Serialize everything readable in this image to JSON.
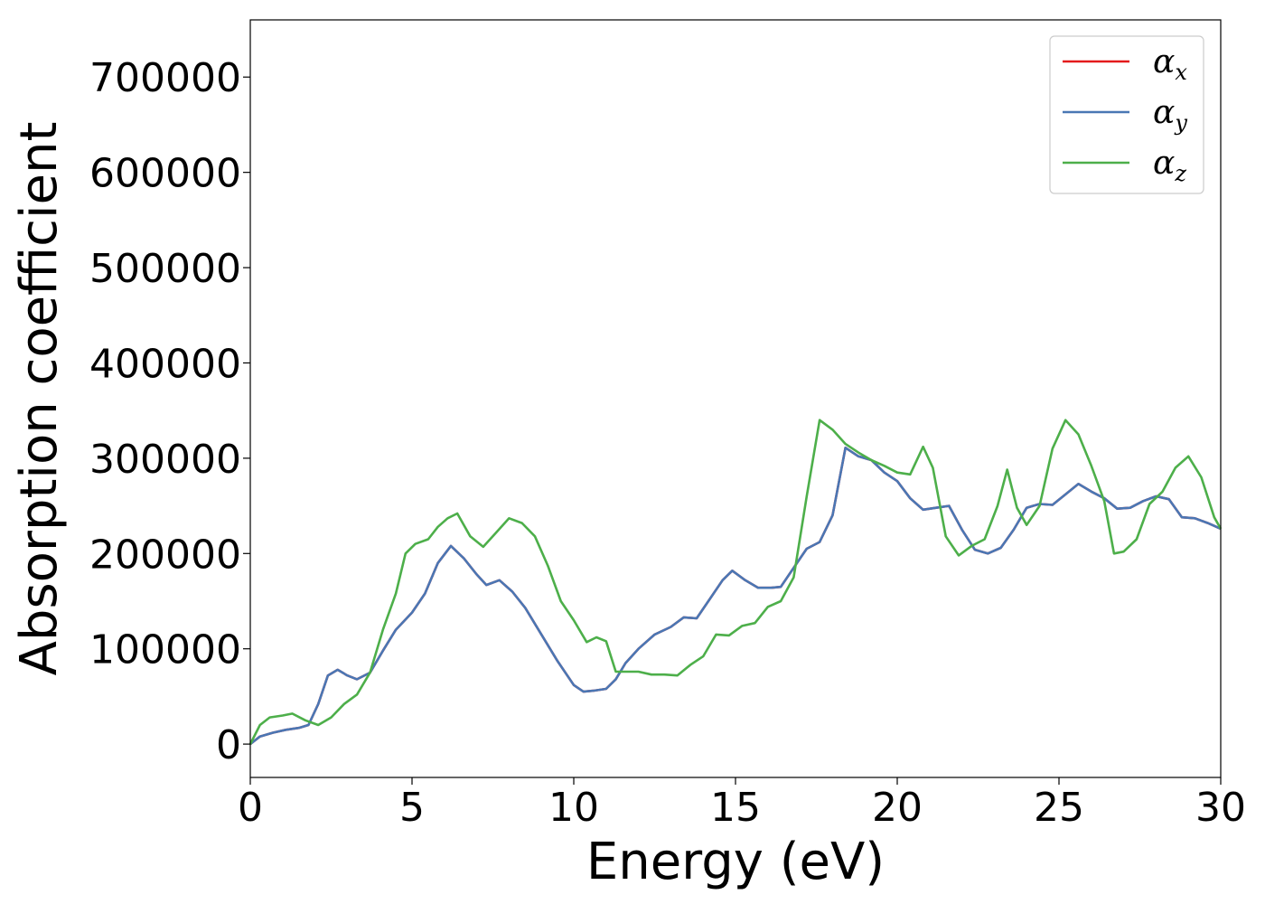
{
  "chart_data": {
    "type": "line",
    "title": "",
    "xlabel": "Energy (eV)",
    "ylabel": "Absorption coefficient",
    "xlim": [
      0,
      30
    ],
    "ylim": [
      -35000,
      760000
    ],
    "xticks": [
      "0",
      "5",
      "10",
      "15",
      "20",
      "25",
      "30"
    ],
    "xtick_values": [
      0,
      5,
      10,
      15,
      20,
      25,
      30
    ],
    "yticks": [
      "0",
      "100000",
      "200000",
      "300000",
      "400000",
      "500000",
      "600000",
      "700000"
    ],
    "ytick_values": [
      0,
      100000,
      200000,
      300000,
      400000,
      500000,
      600000,
      700000
    ],
    "grid": false,
    "legend_position": "top-right",
    "series": [
      {
        "name": "x",
        "legend_symbol": "α",
        "legend_subscript": "x",
        "color": "#e41a1c",
        "x": [
          0,
          0.3,
          0.7,
          1.1,
          1.5,
          1.8,
          2.1,
          2.4,
          2.7,
          3.0,
          3.3,
          3.7,
          4.1,
          4.5,
          5.0,
          5.4,
          5.8,
          6.2,
          6.6,
          7.0,
          7.3,
          7.7,
          8.1,
          8.5,
          9.0,
          9.5,
          10.0,
          10.3,
          10.6,
          11.0,
          11.3,
          11.6,
          12.0,
          12.5,
          13.0,
          13.4,
          13.8,
          14.2,
          14.6,
          14.9,
          15.3,
          15.7,
          16.1,
          16.4,
          16.8,
          17.2,
          17.6,
          18.0,
          18.4,
          18.8,
          19.2,
          19.6,
          20.0,
          20.4,
          20.8,
          21.2,
          21.6,
          22.0,
          22.4,
          22.8,
          23.2,
          23.6,
          24.0,
          24.4,
          24.8,
          25.2,
          25.6,
          26.0,
          26.4,
          26.8,
          27.2,
          27.6,
          28.0,
          28.4,
          28.8,
          29.2,
          29.6,
          30.0
        ],
        "y": [
          0,
          8000,
          12000,
          15000,
          17000,
          20000,
          42000,
          72000,
          78000,
          72000,
          68000,
          75000,
          98000,
          120000,
          138000,
          158000,
          190000,
          208000,
          195000,
          178000,
          167000,
          172000,
          160000,
          143000,
          115000,
          87000,
          62000,
          55000,
          56000,
          58000,
          68000,
          85000,
          100000,
          115000,
          123000,
          133000,
          132000,
          152000,
          172000,
          182000,
          172000,
          164000,
          164000,
          165000,
          185000,
          205000,
          212000,
          240000,
          311000,
          302000,
          298000,
          285000,
          276000,
          258000,
          246000,
          248000,
          250000,
          225000,
          204000,
          200000,
          206000,
          225000,
          248000,
          252000,
          251000,
          262000,
          273000,
          265000,
          258000,
          247000,
          248000,
          255000,
          260000,
          257000,
          238000,
          237000,
          232000,
          226000
        ]
      },
      {
        "name": "y",
        "legend_symbol": "α",
        "legend_subscript": "y",
        "color": "#4a77b4",
        "x": [
          0,
          0.3,
          0.7,
          1.1,
          1.5,
          1.8,
          2.1,
          2.4,
          2.7,
          3.0,
          3.3,
          3.7,
          4.1,
          4.5,
          5.0,
          5.4,
          5.8,
          6.2,
          6.6,
          7.0,
          7.3,
          7.7,
          8.1,
          8.5,
          9.0,
          9.5,
          10.0,
          10.3,
          10.6,
          11.0,
          11.3,
          11.6,
          12.0,
          12.5,
          13.0,
          13.4,
          13.8,
          14.2,
          14.6,
          14.9,
          15.3,
          15.7,
          16.1,
          16.4,
          16.8,
          17.2,
          17.6,
          18.0,
          18.4,
          18.8,
          19.2,
          19.6,
          20.0,
          20.4,
          20.8,
          21.2,
          21.6,
          22.0,
          22.4,
          22.8,
          23.2,
          23.6,
          24.0,
          24.4,
          24.8,
          25.2,
          25.6,
          26.0,
          26.4,
          26.8,
          27.2,
          27.6,
          28.0,
          28.4,
          28.8,
          29.2,
          29.6,
          30.0
        ],
        "y": [
          0,
          8000,
          12000,
          15000,
          17000,
          20000,
          42000,
          72000,
          78000,
          72000,
          68000,
          75000,
          98000,
          120000,
          138000,
          158000,
          190000,
          208000,
          195000,
          178000,
          167000,
          172000,
          160000,
          143000,
          115000,
          87000,
          62000,
          55000,
          56000,
          58000,
          68000,
          85000,
          100000,
          115000,
          123000,
          133000,
          132000,
          152000,
          172000,
          182000,
          172000,
          164000,
          164000,
          165000,
          185000,
          205000,
          212000,
          240000,
          311000,
          302000,
          298000,
          285000,
          276000,
          258000,
          246000,
          248000,
          250000,
          225000,
          204000,
          200000,
          206000,
          225000,
          248000,
          252000,
          251000,
          262000,
          273000,
          265000,
          258000,
          247000,
          248000,
          255000,
          260000,
          257000,
          238000,
          237000,
          232000,
          226000
        ]
      },
      {
        "name": "z",
        "legend_symbol": "α",
        "legend_subscript": "z",
        "color": "#4daf4a",
        "x": [
          0,
          0.3,
          0.6,
          1.0,
          1.3,
          1.7,
          2.1,
          2.5,
          2.9,
          3.3,
          3.7,
          4.1,
          4.5,
          4.8,
          5.1,
          5.5,
          5.8,
          6.1,
          6.4,
          6.8,
          7.2,
          7.6,
          8.0,
          8.4,
          8.8,
          9.2,
          9.6,
          10.0,
          10.4,
          10.7,
          11.0,
          11.3,
          11.6,
          12.0,
          12.4,
          12.8,
          13.2,
          13.6,
          14.0,
          14.4,
          14.8,
          15.2,
          15.6,
          16.0,
          16.4,
          16.8,
          17.2,
          17.6,
          18.0,
          18.4,
          18.8,
          19.2,
          19.6,
          20.0,
          20.4,
          20.8,
          21.1,
          21.5,
          21.9,
          22.3,
          22.7,
          23.1,
          23.4,
          23.7,
          24.0,
          24.4,
          24.8,
          25.2,
          25.6,
          26.0,
          26.4,
          26.7,
          27.0,
          27.4,
          27.8,
          28.2,
          28.6,
          29.0,
          29.4,
          29.8,
          30.0
        ],
        "y": [
          0,
          20000,
          28000,
          30000,
          32000,
          25000,
          20000,
          28000,
          42000,
          52000,
          75000,
          120000,
          158000,
          200000,
          210000,
          215000,
          228000,
          237000,
          242000,
          218000,
          207000,
          222000,
          237000,
          232000,
          218000,
          187000,
          150000,
          130000,
          107000,
          112000,
          108000,
          76000,
          76000,
          76000,
          73000,
          73000,
          72000,
          83000,
          92000,
          115000,
          114000,
          124000,
          127000,
          144000,
          150000,
          175000,
          260000,
          340000,
          330000,
          315000,
          306000,
          298000,
          292000,
          285000,
          283000,
          312000,
          290000,
          218000,
          198000,
          208000,
          215000,
          250000,
          288000,
          248000,
          230000,
          250000,
          310000,
          340000,
          325000,
          292000,
          255000,
          200000,
          202000,
          215000,
          252000,
          265000,
          290000,
          302000,
          280000,
          238000,
          226000
        ]
      }
    ]
  }
}
